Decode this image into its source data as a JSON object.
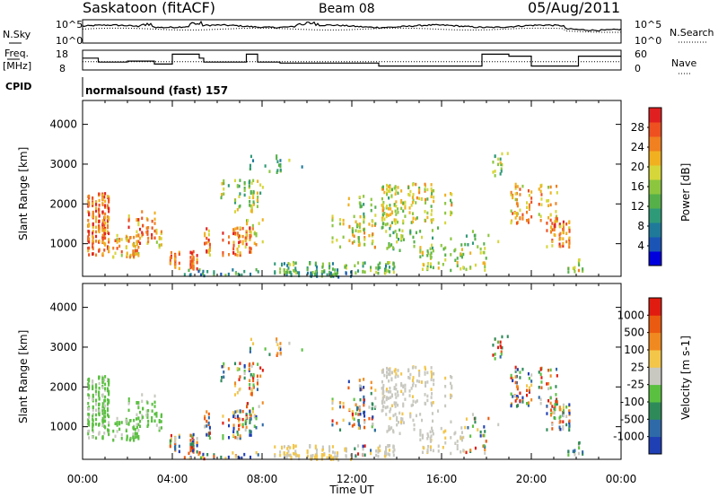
{
  "header": {
    "station": "Saskatoon (fitACF)",
    "beam": "Beam 08",
    "date": "05/Aug/2011"
  },
  "top_panels": {
    "nsky_label": "N.Sky",
    "nsky_ticks": [
      "10^5",
      "10^0"
    ],
    "nsearch_label": "N.Search",
    "nsearch_ticks": [
      "10^5",
      "10^0"
    ],
    "freq_label_1": "Freq.",
    "freq_label_2": "[MHz]",
    "freq_ticks": [
      "18",
      "8"
    ],
    "nave_label": "Nave",
    "nave_ticks": [
      "60",
      "0"
    ],
    "cpid_label": "CPID",
    "cpid_value": "normalsound (fast) 157"
  },
  "chart_data": [
    {
      "type": "heatmap",
      "name": "power-panel",
      "ylabel": "Slant Range [km]",
      "yticks": [
        "1000",
        "2000",
        "3000",
        "4000"
      ],
      "ylim": [
        180,
        4600
      ],
      "xlim": [
        0,
        24
      ],
      "colorbar_label": "Power [dB]",
      "colorbar_ticks": [
        "28",
        "24",
        "20",
        "16",
        "12",
        "8",
        "4"
      ],
      "colorbar_colors": [
        "#0000dd",
        "#1a55b5",
        "#1f7a9a",
        "#2f9a78",
        "#55b04a",
        "#8cc63f",
        "#d6d63a",
        "#f0b020",
        "#f08020",
        "#ee5020",
        "#e02020"
      ]
    },
    {
      "type": "heatmap",
      "name": "velocity-panel",
      "ylabel": "Slant Range [km]",
      "yticks": [
        "1000",
        "2000",
        "3000",
        "4000"
      ],
      "ylim": [
        180,
        4600
      ],
      "xlim": [
        0,
        24
      ],
      "colorbar_label": "Velocity [m s-1]",
      "colorbar_ticks": [
        "1000",
        "500",
        "100",
        "25",
        "-25",
        "-100",
        "-500",
        "-1000"
      ],
      "colorbar_colors": [
        "#1f3fb5",
        "#2f6aa8",
        "#2f8a5a",
        "#5ac040",
        "#c8c8c0",
        "#f3c64a",
        "#f08a20",
        "#ea5a10",
        "#e01c10"
      ],
      "xlabel": "Time UT",
      "xticks": [
        "00:00",
        "04:00",
        "08:00",
        "12:00",
        "16:00",
        "20:00",
        "00:00"
      ]
    }
  ]
}
